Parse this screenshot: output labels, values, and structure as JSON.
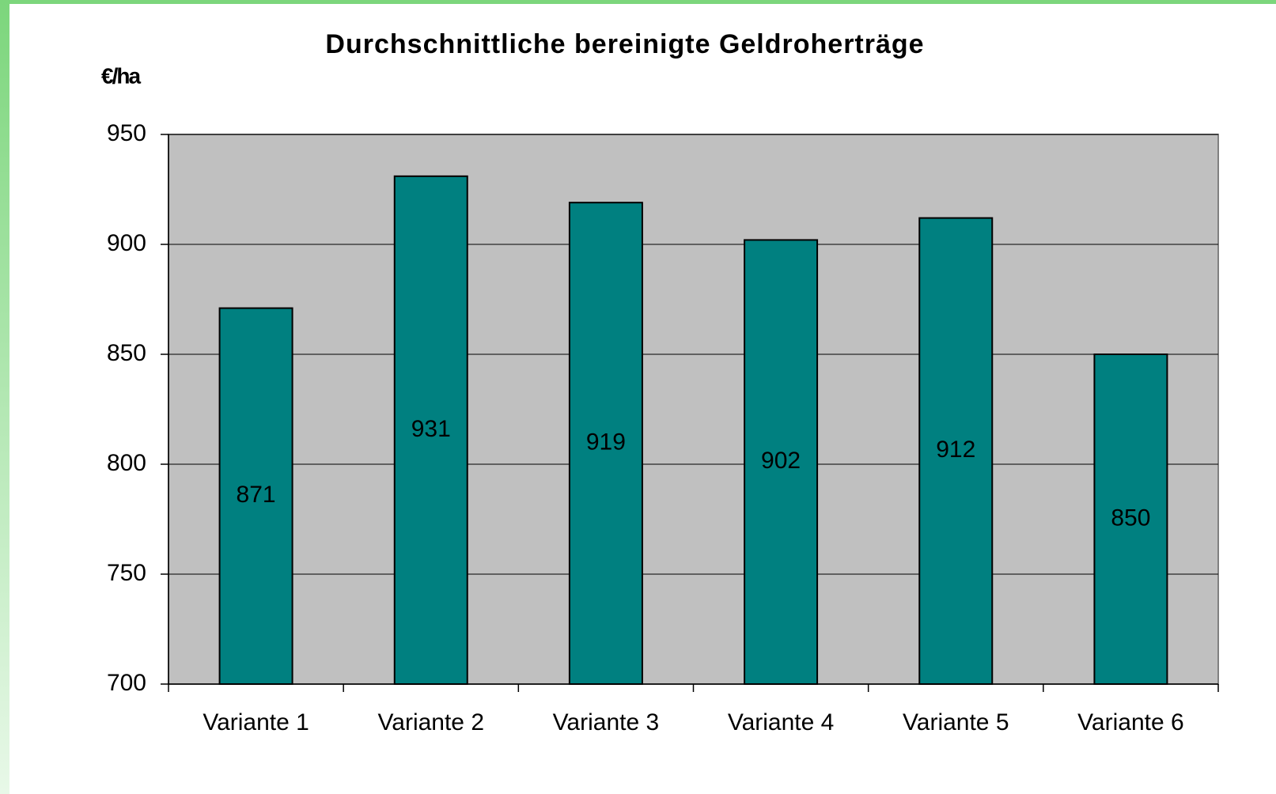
{
  "chart_data": {
    "type": "bar",
    "title": "Durchschnittliche bereinigte Geldroherträge",
    "y_label": "€/ha",
    "categories": [
      "Variante 1",
      "Variante 2",
      "Variante 3",
      "Variante 4",
      "Variante 5",
      "Variante 6"
    ],
    "values": [
      871,
      931,
      919,
      902,
      912,
      850
    ],
    "color": "#008080",
    "ylim": [
      700,
      950
    ],
    "yticks": [
      700,
      750,
      800,
      850,
      900,
      950
    ],
    "grid": true
  }
}
